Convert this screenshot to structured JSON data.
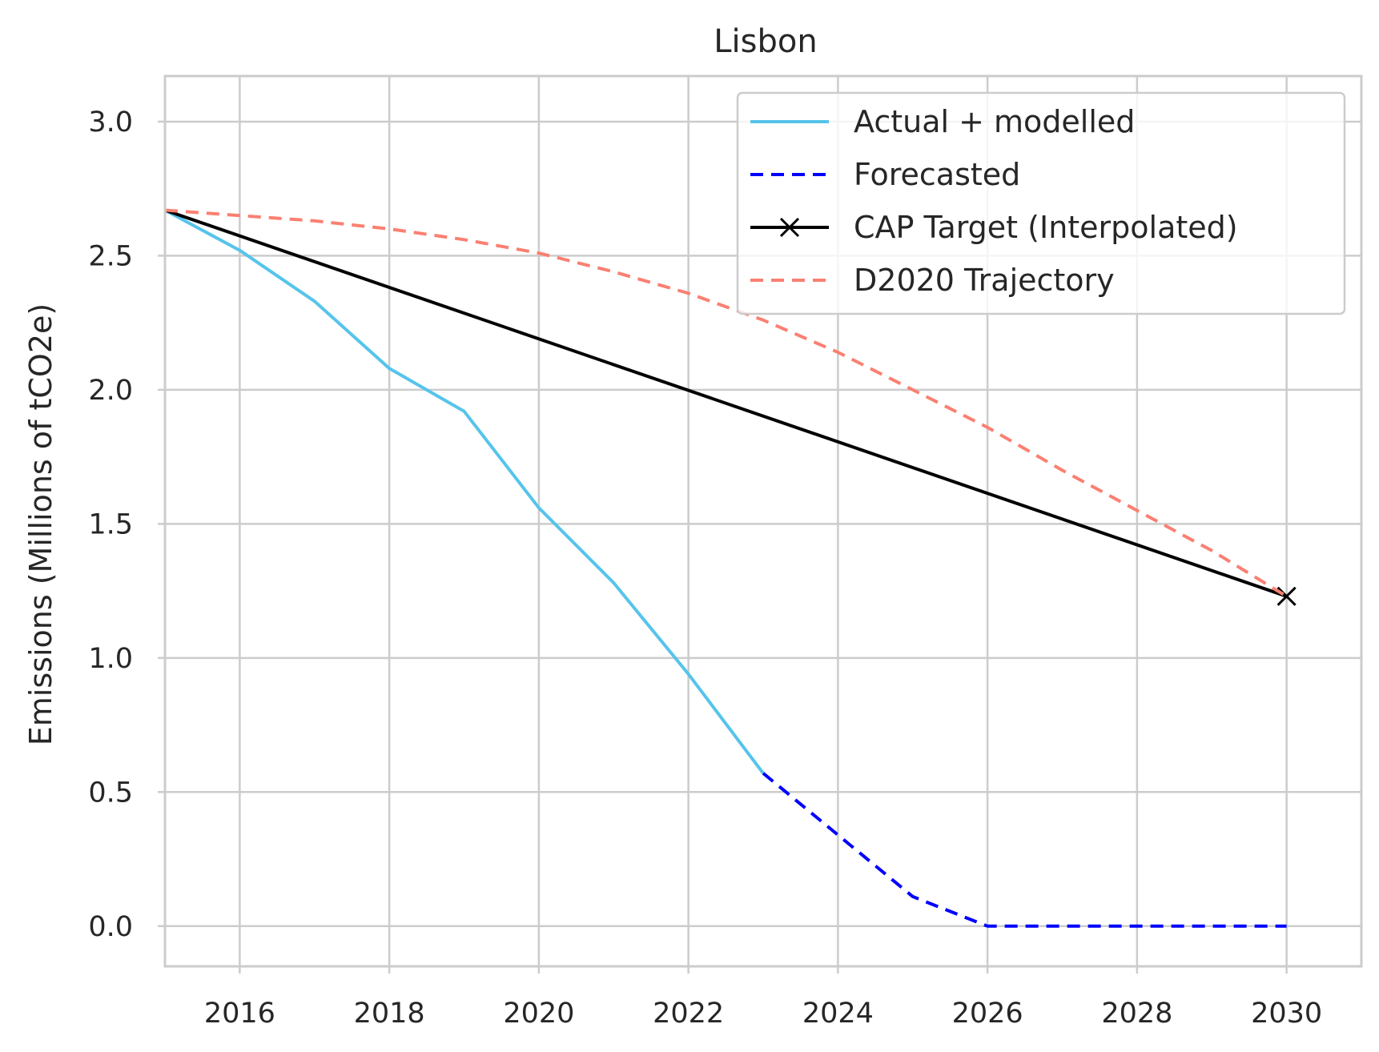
{
  "chart_data": {
    "type": "line",
    "title": "Lisbon",
    "xlabel": "",
    "ylabel": "Emissions (Millions of tCO2e)",
    "xlim": [
      2015,
      2031
    ],
    "ylim": [
      -0.15,
      3.17
    ],
    "x_ticks": [
      2016,
      2018,
      2020,
      2022,
      2024,
      2026,
      2028,
      2030
    ],
    "y_ticks": [
      0.0,
      0.5,
      1.0,
      1.5,
      2.0,
      2.5,
      3.0
    ],
    "y_tick_labels": [
      "0.0",
      "0.5",
      "1.0",
      "1.5",
      "2.0",
      "2.5",
      "3.0"
    ],
    "grid": true,
    "legend_position": "top-right",
    "series": [
      {
        "name": "Actual + modelled",
        "color": "#56c4ea",
        "style": "solid",
        "x": [
          2015,
          2016,
          2017,
          2018,
          2019,
          2020,
          2021,
          2022,
          2023
        ],
        "y": [
          2.67,
          2.52,
          2.33,
          2.08,
          1.92,
          1.56,
          1.28,
          0.94,
          0.57
        ]
      },
      {
        "name": "Forecasted",
        "color": "#0000ff",
        "style": "dashed",
        "x": [
          2023,
          2024,
          2025,
          2026,
          2027,
          2028,
          2029,
          2030
        ],
        "y": [
          0.57,
          0.34,
          0.11,
          0.0,
          0.0,
          0.0,
          0.0,
          0.0
        ]
      },
      {
        "name": "CAP Target (Interpolated)",
        "color": "#000000",
        "style": "solid",
        "marker_at_end": "x",
        "x": [
          2015,
          2030
        ],
        "y": [
          2.67,
          1.23
        ]
      },
      {
        "name": "D2020 Trajectory",
        "color": "#fa8072",
        "style": "dashed",
        "x": [
          2015,
          2016,
          2017,
          2018,
          2019,
          2020,
          2021,
          2022,
          2023,
          2024,
          2025,
          2026,
          2027,
          2028,
          2029,
          2030
        ],
        "y": [
          2.67,
          2.65,
          2.63,
          2.6,
          2.56,
          2.51,
          2.44,
          2.36,
          2.26,
          2.14,
          2.0,
          1.86,
          1.7,
          1.55,
          1.4,
          1.23
        ]
      }
    ]
  }
}
